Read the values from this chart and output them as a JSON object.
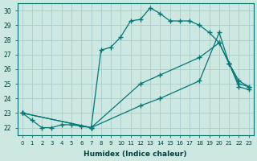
{
  "xlabel": "Humidex (Indice chaleur)",
  "background_color": "#cce8e0",
  "grid_color": "#aacccc",
  "line_color": "#007878",
  "xlim": [
    -0.5,
    23.5
  ],
  "ylim": [
    21.5,
    30.5
  ],
  "xticks": [
    0,
    1,
    2,
    3,
    4,
    5,
    6,
    7,
    8,
    9,
    10,
    11,
    12,
    13,
    14,
    15,
    16,
    17,
    18,
    19,
    20,
    21,
    22,
    23
  ],
  "yticks": [
    22,
    23,
    24,
    25,
    26,
    27,
    28,
    29,
    30
  ],
  "line1_x": [
    0,
    1,
    2,
    3,
    4,
    5,
    6,
    7,
    8,
    9,
    10,
    11,
    12,
    13,
    14,
    15,
    16,
    17,
    18,
    19,
    20,
    21,
    22,
    23
  ],
  "line1_y": [
    23.0,
    22.5,
    22.0,
    22.0,
    22.2,
    22.2,
    22.1,
    22.0,
    27.3,
    27.5,
    28.2,
    29.3,
    29.4,
    30.2,
    29.8,
    29.3,
    29.3,
    29.3,
    29.0,
    28.5,
    27.8,
    26.4,
    25.2,
    24.8
  ],
  "line2_x": [
    0,
    7,
    12,
    14,
    18,
    20,
    21,
    22,
    23
  ],
  "line2_y": [
    23.0,
    22.0,
    25.0,
    25.6,
    26.8,
    27.8,
    26.4,
    25.0,
    24.8
  ],
  "line3_x": [
    0,
    7,
    12,
    14,
    18,
    20,
    21,
    22,
    23
  ],
  "line3_y": [
    23.0,
    22.0,
    23.5,
    24.0,
    25.2,
    28.5,
    26.4,
    24.8,
    24.6
  ]
}
